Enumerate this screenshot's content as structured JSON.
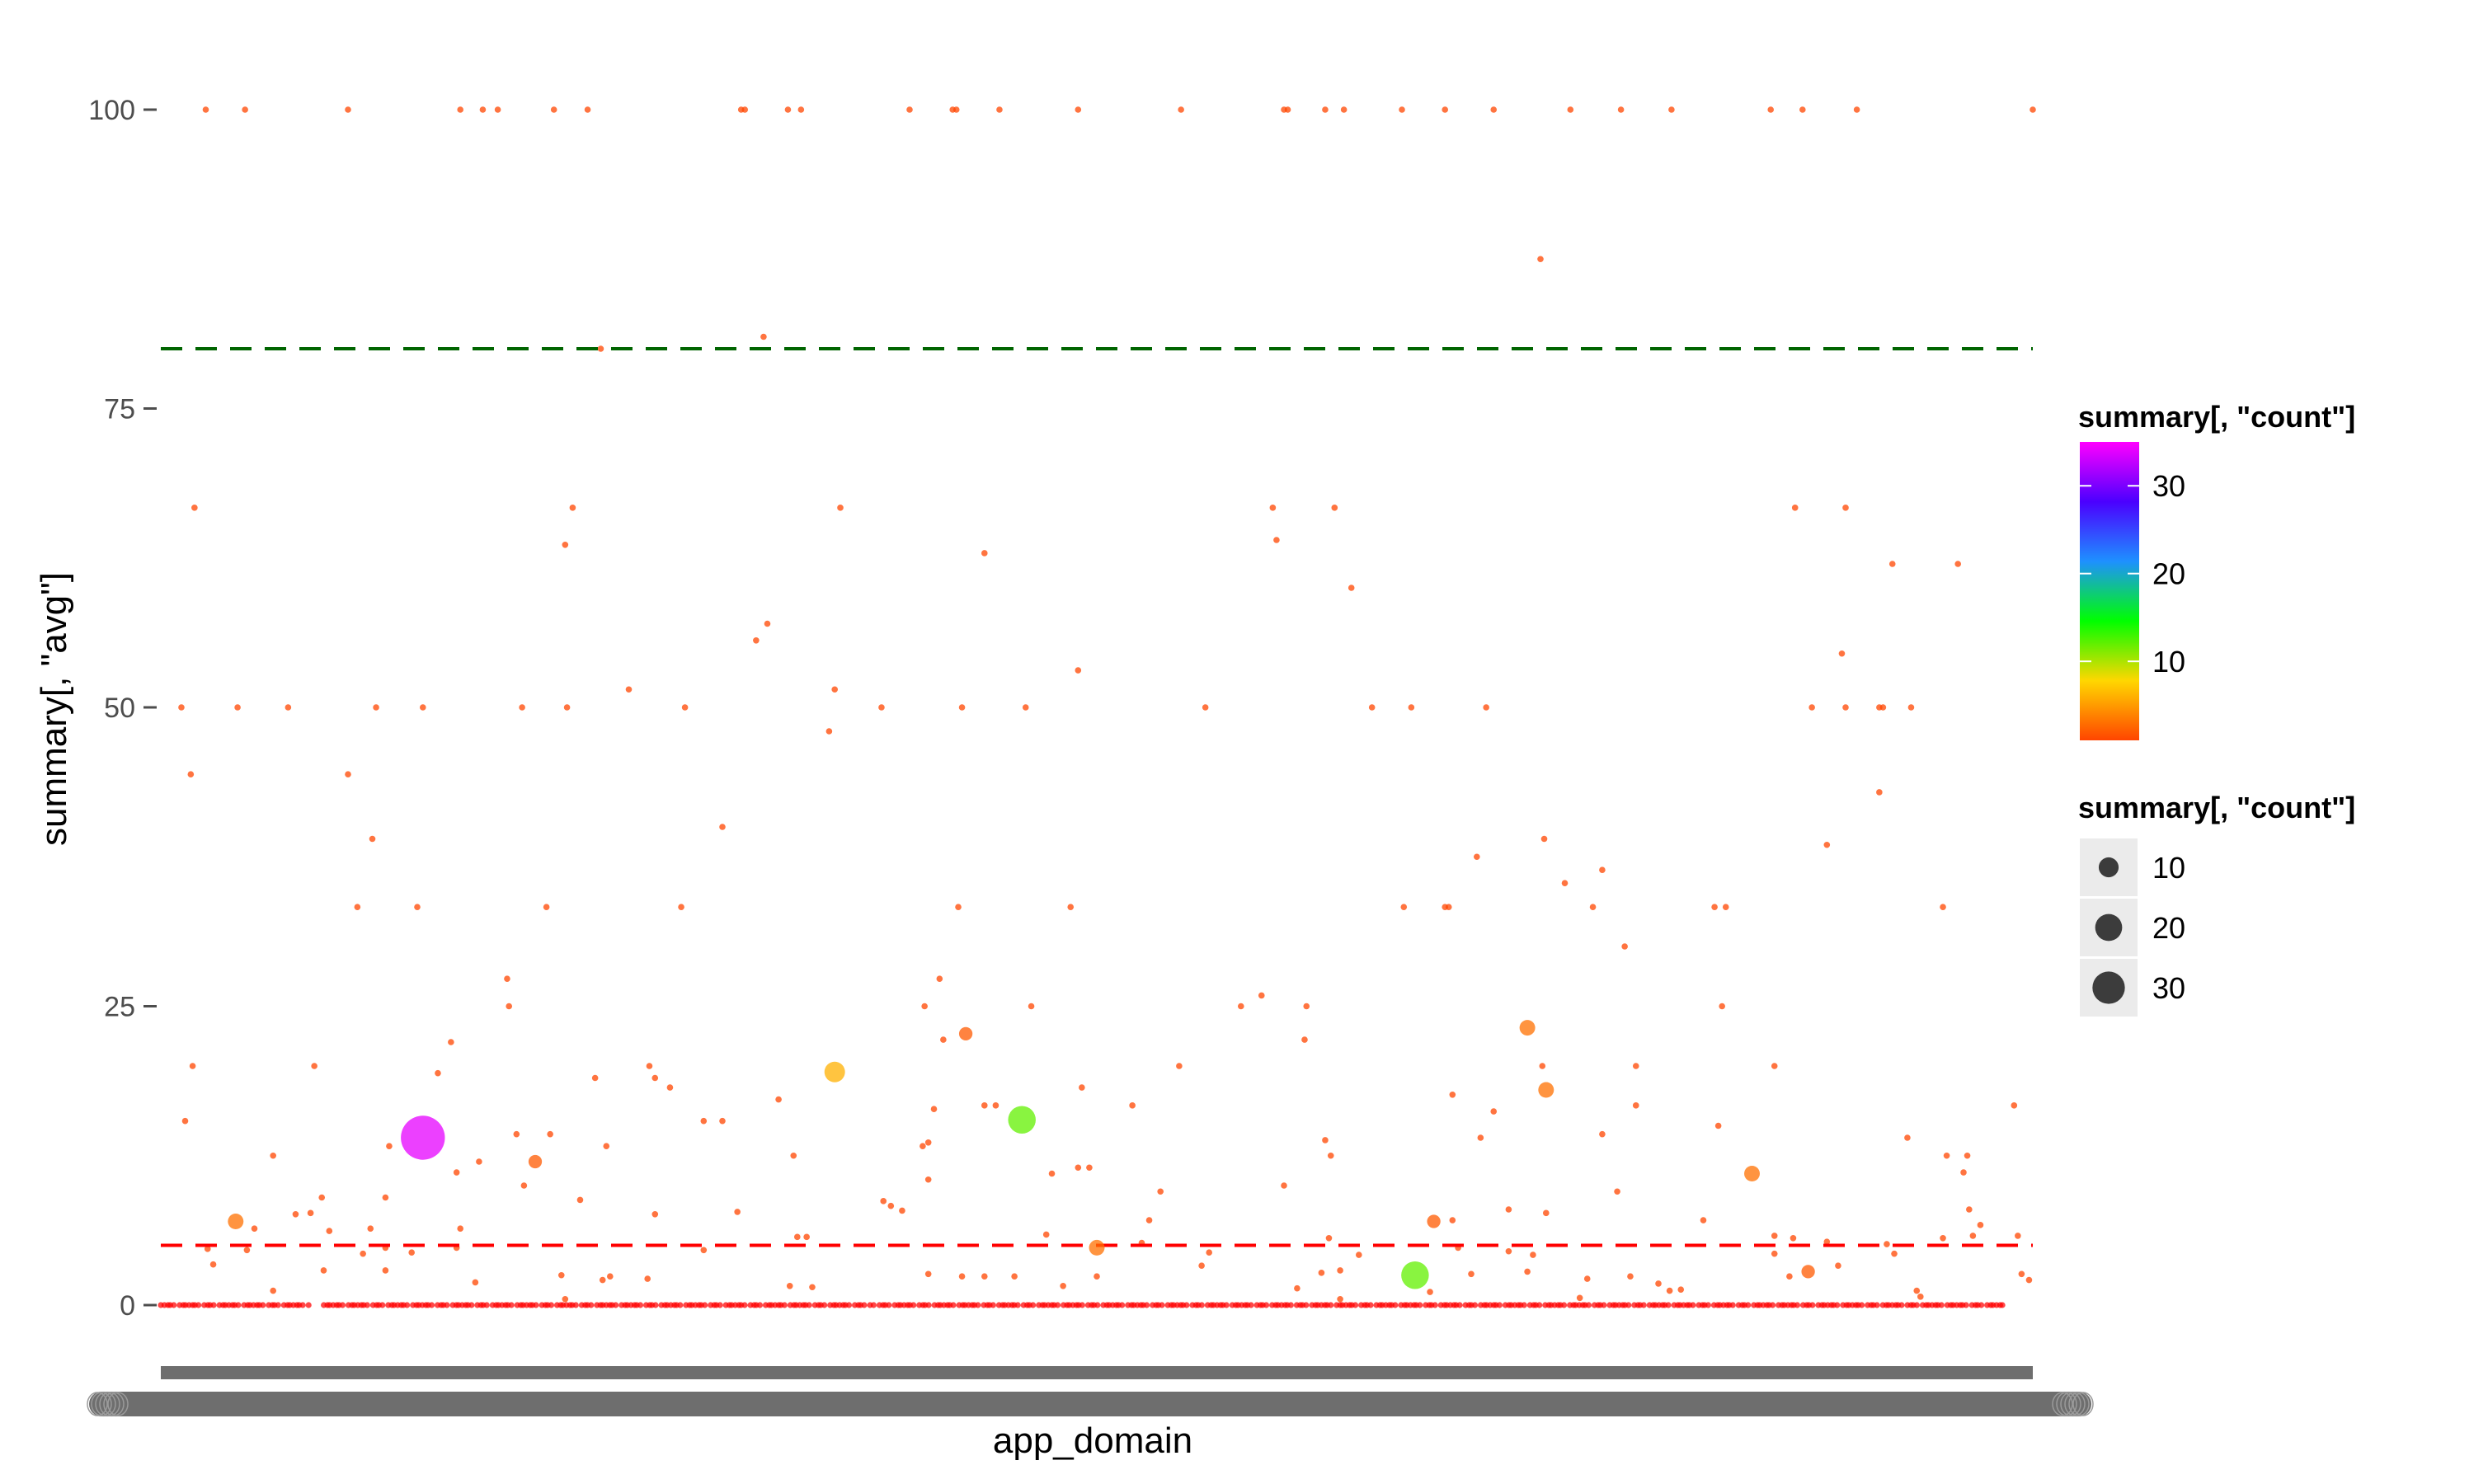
{
  "chart_data": {
    "type": "scatter",
    "title": "",
    "xlabel": "app_domain",
    "ylabel": "summary[, \"avg\"]",
    "ylim": [
      -9,
      103
    ],
    "yticks": [
      0,
      25,
      50,
      75,
      100
    ],
    "ytick_labels": [
      "0",
      "25",
      "50",
      "75",
      "100"
    ],
    "grid": false,
    "reference_lines": [
      {
        "y": 80,
        "color": "#006400",
        "style": "dashed"
      },
      {
        "y": 5,
        "color": "#ff0000",
        "style": "dashed"
      }
    ],
    "x_tick_labels_note": "overlapping category labels rendered as a dark band",
    "color_legend": {
      "title": "summary[, \"count\"]",
      "breaks": [
        10,
        20,
        30
      ],
      "labels": [
        "10",
        "20",
        "30"
      ],
      "range": [
        1,
        35
      ],
      "gradient_stops": [
        "#ff4500",
        "#ffd700",
        "#00ff00",
        "#1e90ff",
        "#4b00ff",
        "#ff00ff"
      ]
    },
    "size_legend": {
      "title": "summary[, \"count\"]",
      "breaks": [
        10,
        20,
        30
      ],
      "labels": [
        "10",
        "20",
        "30"
      ]
    },
    "highlighted_points": [
      {
        "x": 0.14,
        "y": 14,
        "count": 34
      },
      {
        "x": 0.46,
        "y": 15.5,
        "count": 12
      },
      {
        "x": 0.67,
        "y": 2.5,
        "count": 12
      },
      {
        "x": 0.36,
        "y": 19.5,
        "count": 6
      },
      {
        "x": 0.04,
        "y": 7,
        "count": 3
      },
      {
        "x": 0.2,
        "y": 12,
        "count": 2
      },
      {
        "x": 0.43,
        "y": 22.7,
        "count": 2
      },
      {
        "x": 0.5,
        "y": 4.8,
        "count": 3
      },
      {
        "x": 0.68,
        "y": 7,
        "count": 2
      },
      {
        "x": 0.73,
        "y": 23.2,
        "count": 3
      },
      {
        "x": 0.74,
        "y": 18,
        "count": 3
      },
      {
        "x": 0.85,
        "y": 11,
        "count": 3
      },
      {
        "x": 0.88,
        "y": 2.8,
        "count": 2
      }
    ],
    "upper_points": [
      [
        0.024,
        100
      ],
      [
        0.045,
        100
      ],
      [
        0.1,
        100
      ],
      [
        0.16,
        100
      ],
      [
        0.172,
        100
      ],
      [
        0.18,
        100
      ],
      [
        0.21,
        100
      ],
      [
        0.228,
        100
      ],
      [
        0.31,
        100
      ],
      [
        0.312,
        100
      ],
      [
        0.335,
        100
      ],
      [
        0.342,
        100
      ],
      [
        0.4,
        100
      ],
      [
        0.423,
        100
      ],
      [
        0.425,
        100
      ],
      [
        0.448,
        100
      ],
      [
        0.49,
        100
      ],
      [
        0.545,
        100
      ],
      [
        0.6,
        100
      ],
      [
        0.602,
        100
      ],
      [
        0.622,
        100
      ],
      [
        0.632,
        100
      ],
      [
        0.663,
        100
      ],
      [
        0.686,
        100
      ],
      [
        0.712,
        100
      ],
      [
        0.753,
        100
      ],
      [
        0.78,
        100
      ],
      [
        0.807,
        100
      ],
      [
        0.86,
        100
      ],
      [
        0.877,
        100
      ],
      [
        0.906,
        100
      ],
      [
        1.0,
        100
      ],
      [
        0.737,
        87.5
      ],
      [
        0.322,
        81
      ],
      [
        0.235,
        80
      ],
      [
        0.018,
        66.7
      ],
      [
        0.22,
        66.7
      ],
      [
        0.363,
        66.7
      ],
      [
        0.594,
        66.7
      ],
      [
        0.627,
        66.7
      ],
      [
        0.873,
        66.7
      ],
      [
        0.9,
        66.7
      ],
      [
        0.216,
        63.6
      ],
      [
        0.596,
        64
      ],
      [
        0.44,
        62.9
      ],
      [
        0.925,
        62
      ],
      [
        0.96,
        62
      ],
      [
        0.636,
        60
      ],
      [
        0.324,
        57
      ],
      [
        0.318,
        55.6
      ],
      [
        0.898,
        54.5
      ],
      [
        0.25,
        51.5
      ],
      [
        0.36,
        51.5
      ],
      [
        0.49,
        53.1
      ],
      [
        0.011,
        50
      ],
      [
        0.041,
        50
      ],
      [
        0.068,
        50
      ],
      [
        0.115,
        50
      ],
      [
        0.14,
        50
      ],
      [
        0.193,
        50
      ],
      [
        0.217,
        50
      ],
      [
        0.28,
        50
      ],
      [
        0.385,
        50
      ],
      [
        0.428,
        50
      ],
      [
        0.462,
        50
      ],
      [
        0.558,
        50
      ],
      [
        0.647,
        50
      ],
      [
        0.668,
        50
      ],
      [
        0.708,
        50
      ],
      [
        0.882,
        50
      ],
      [
        0.9,
        50
      ],
      [
        0.918,
        50
      ],
      [
        0.92,
        50
      ],
      [
        0.935,
        50
      ],
      [
        0.016,
        44.4
      ],
      [
        0.1,
        44.4
      ],
      [
        0.357,
        48
      ],
      [
        0.918,
        42.9
      ],
      [
        0.3,
        40
      ],
      [
        0.113,
        39
      ],
      [
        0.739,
        39
      ],
      [
        0.703,
        37.5
      ],
      [
        0.89,
        38.5
      ],
      [
        0.77,
        36.4
      ],
      [
        0.75,
        35.3
      ],
      [
        0.782,
        30
      ],
      [
        0.105,
        33.3
      ],
      [
        0.137,
        33.3
      ],
      [
        0.206,
        33.3
      ],
      [
        0.278,
        33.3
      ],
      [
        0.426,
        33.3
      ],
      [
        0.486,
        33.3
      ],
      [
        0.664,
        33.3
      ],
      [
        0.686,
        33.3
      ],
      [
        0.688,
        33.3
      ],
      [
        0.765,
        33.3
      ],
      [
        0.83,
        33.3
      ],
      [
        0.836,
        33.3
      ],
      [
        0.952,
        33.3
      ],
      [
        0.185,
        27.3
      ],
      [
        0.416,
        27.3
      ],
      [
        0.588,
        25.9
      ],
      [
        0.186,
        25
      ],
      [
        0.408,
        25
      ],
      [
        0.465,
        25
      ],
      [
        0.577,
        25
      ],
      [
        0.612,
        25
      ],
      [
        0.834,
        25
      ],
      [
        0.611,
        22.2
      ],
      [
        0.418,
        22.2
      ],
      [
        0.155,
        22
      ],
      [
        0.017,
        20
      ],
      [
        0.082,
        20
      ],
      [
        0.261,
        20
      ],
      [
        0.544,
        20
      ],
      [
        0.788,
        20
      ],
      [
        0.862,
        20
      ],
      [
        0.738,
        20
      ],
      [
        0.148,
        19.4
      ],
      [
        0.232,
        19
      ],
      [
        0.264,
        19
      ],
      [
        0.272,
        18.2
      ],
      [
        0.492,
        18.2
      ],
      [
        0.69,
        17.6
      ],
      [
        0.33,
        17.2
      ],
      [
        0.519,
        16.7
      ],
      [
        0.788,
        16.7
      ],
      [
        0.99,
        16.7
      ],
      [
        0.44,
        16.7
      ],
      [
        0.446,
        16.7
      ],
      [
        0.413,
        16.4
      ],
      [
        0.712,
        16.2
      ],
      [
        0.013,
        15.4
      ],
      [
        0.29,
        15.4
      ],
      [
        0.3,
        15.4
      ],
      [
        0.832,
        15
      ],
      [
        0.19,
        14.3
      ],
      [
        0.208,
        14.3
      ],
      [
        0.705,
        14
      ],
      [
        0.77,
        14.3
      ],
      [
        0.933,
        14
      ],
      [
        0.622,
        13.8
      ],
      [
        0.122,
        13.3
      ],
      [
        0.407,
        13.3
      ],
      [
        0.238,
        13.3
      ],
      [
        0.41,
        13.6
      ],
      [
        0.625,
        12.5
      ],
      [
        0.06,
        12.5
      ],
      [
        0.338,
        12.5
      ],
      [
        0.954,
        12.5
      ],
      [
        0.965,
        12.5
      ],
      [
        0.158,
        11.1
      ],
      [
        0.49,
        11.5
      ],
      [
        0.496,
        11.5
      ],
      [
        0.963,
        11.1
      ],
      [
        0.476,
        11
      ],
      [
        0.17,
        12
      ],
      [
        0.41,
        10.5
      ],
      [
        0.194,
        10
      ],
      [
        0.6,
        10
      ],
      [
        0.778,
        9.5
      ],
      [
        0.534,
        9.5
      ],
      [
        0.12,
        9
      ],
      [
        0.086,
        9
      ],
      [
        0.224,
        8.8
      ],
      [
        0.386,
        8.7
      ],
      [
        0.39,
        8.3
      ],
      [
        0.396,
        7.9
      ],
      [
        0.966,
        8
      ],
      [
        0.08,
        7.7
      ],
      [
        0.072,
        7.6
      ],
      [
        0.308,
        7.8
      ],
      [
        0.72,
        8
      ],
      [
        0.264,
        7.6
      ],
      [
        0.74,
        7.7
      ],
      [
        0.528,
        7.1
      ],
      [
        0.824,
        7.1
      ],
      [
        0.69,
        7.1
      ],
      [
        0.972,
        6.7
      ],
      [
        0.05,
        6.4
      ],
      [
        0.09,
        6.2
      ],
      [
        0.112,
        6.4
      ],
      [
        0.16,
        6.4
      ],
      [
        0.473,
        5.9
      ],
      [
        0.862,
        5.8
      ],
      [
        0.872,
        5.6
      ],
      [
        0.968,
        5.8
      ],
      [
        0.952,
        5.6
      ],
      [
        0.992,
        5.8
      ],
      [
        0.34,
        5.7
      ],
      [
        0.345,
        5.7
      ],
      [
        0.524,
        5.2
      ],
      [
        0.624,
        5.6
      ],
      [
        0.693,
        4.8
      ],
      [
        0.72,
        4.5
      ],
      [
        0.89,
        5.3
      ],
      [
        0.922,
        5.1
      ],
      [
        0.025,
        4.7
      ],
      [
        0.046,
        4.6
      ],
      [
        0.108,
        4.3
      ],
      [
        0.12,
        4.8
      ],
      [
        0.134,
        4.4
      ],
      [
        0.158,
        4.8
      ],
      [
        0.29,
        4.6
      ],
      [
        0.56,
        4.4
      ],
      [
        0.64,
        4.2
      ],
      [
        0.733,
        4.2
      ],
      [
        0.862,
        4.3
      ],
      [
        0.926,
        4.3
      ],
      [
        0.028,
        3.4
      ],
      [
        0.087,
        2.9
      ],
      [
        0.12,
        2.9
      ],
      [
        0.214,
        2.5
      ],
      [
        0.24,
        2.4
      ],
      [
        0.41,
        2.6
      ],
      [
        0.428,
        2.4
      ],
      [
        0.44,
        2.4
      ],
      [
        0.456,
        2.4
      ],
      [
        0.5,
        2.4
      ],
      [
        0.556,
        3.3
      ],
      [
        0.62,
        2.7
      ],
      [
        0.63,
        2.9
      ],
      [
        0.7,
        2.6
      ],
      [
        0.73,
        2.8
      ],
      [
        0.762,
        2.2
      ],
      [
        0.785,
        2.4
      ],
      [
        0.8,
        1.8
      ],
      [
        0.87,
        2.4
      ],
      [
        0.896,
        3.3
      ],
      [
        0.998,
        2.1
      ],
      [
        0.06,
        1.2
      ],
      [
        0.168,
        1.9
      ],
      [
        0.236,
        2.1
      ],
      [
        0.26,
        2.2
      ],
      [
        0.336,
        1.6
      ],
      [
        0.348,
        1.5
      ],
      [
        0.482,
        1.6
      ],
      [
        0.607,
        1.4
      ],
      [
        0.678,
        1.1
      ],
      [
        0.806,
        1.2
      ],
      [
        0.812,
        1.3
      ],
      [
        0.938,
        1.2
      ],
      [
        0.994,
        2.6
      ],
      [
        0.216,
        0.5
      ],
      [
        0.63,
        0.5
      ],
      [
        0.758,
        0.6
      ],
      [
        0.94,
        0.7
      ]
    ],
    "zero_band": {
      "y": 0,
      "point_count": 520
    }
  }
}
